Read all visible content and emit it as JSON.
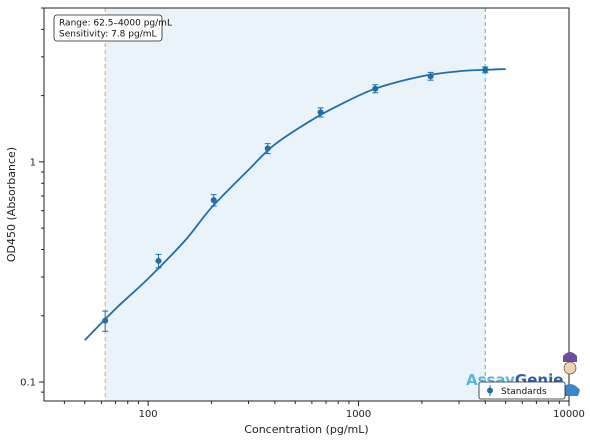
{
  "chart_data": {
    "type": "scatter",
    "title": "",
    "xlabel": "Concentration (pg/mL)",
    "ylabel": "OD450 (Absorbance)",
    "xscale": "log",
    "yscale": "log",
    "xlim": [
      32,
      10000
    ],
    "ylim": [
      0.082,
      5.0
    ],
    "x_ticks": [
      100,
      1000,
      10000
    ],
    "x_tick_labels": [
      "100",
      "1000",
      "10000"
    ],
    "y_ticks": [
      0.1,
      1
    ],
    "y_tick_labels": [
      "0.1",
      "1"
    ],
    "grid": false,
    "series": [
      {
        "name": "Standards",
        "color": "#1f6fa8",
        "x": [
          62.5,
          112,
          205,
          370,
          660,
          1200,
          2200,
          4000
        ],
        "y": [
          0.19,
          0.355,
          0.67,
          1.15,
          1.68,
          2.15,
          2.45,
          2.62
        ],
        "err": [
          0.02,
          0.025,
          0.04,
          0.06,
          0.08,
          0.09,
          0.1,
          0.08
        ]
      }
    ],
    "fit_curve": {
      "color": "#1f6fa8",
      "x": [
        50,
        70,
        100,
        150,
        200,
        300,
        400,
        600,
        800,
        1200,
        2000,
        3000,
        4000,
        5000
      ],
      "y": [
        0.155,
        0.215,
        0.295,
        0.44,
        0.62,
        0.92,
        1.2,
        1.55,
        1.8,
        2.15,
        2.45,
        2.58,
        2.62,
        2.64
      ]
    },
    "range_band": {
      "x": [
        62.5,
        4000
      ],
      "color": "#dbe9f5"
    },
    "lower_line": {
      "x": 62.5,
      "color": "#f0a060"
    },
    "upper_line": {
      "x": 4000,
      "color": "#66bb66"
    },
    "info_box": [
      "Range: 62.5–4000 pg/mL",
      "Sensitivity: 7.8 pg/mL"
    ],
    "legend": {
      "position": "bottom-right",
      "entries": [
        "Standards"
      ]
    },
    "brand": {
      "part1": "Assay",
      "part2": "Genie"
    }
  }
}
